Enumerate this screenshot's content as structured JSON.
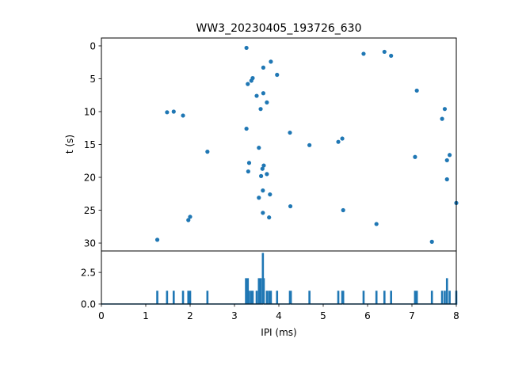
{
  "chart_data": {
    "type": "scatter",
    "title": "WW3_20230405_193726_630",
    "xlabel": "IPI (ms)",
    "top_panel": {
      "ylabel": "t (s)",
      "xlim": [
        0,
        8
      ],
      "ylim": [
        31.2,
        -1.2
      ],
      "y_inverted": true,
      "yticks": [
        0,
        5,
        10,
        15,
        20,
        25,
        30
      ],
      "color": "#1f77b4",
      "points": [
        {
          "x": 3.27,
          "y": 0.3
        },
        {
          "x": 5.91,
          "y": 1.2
        },
        {
          "x": 6.38,
          "y": 0.9
        },
        {
          "x": 6.53,
          "y": 1.5
        },
        {
          "x": 3.82,
          "y": 2.4
        },
        {
          "x": 3.65,
          "y": 3.3
        },
        {
          "x": 3.96,
          "y": 4.4
        },
        {
          "x": 3.41,
          "y": 4.9
        },
        {
          "x": 3.38,
          "y": 5.3
        },
        {
          "x": 3.3,
          "y": 5.8
        },
        {
          "x": 3.65,
          "y": 7.2
        },
        {
          "x": 3.5,
          "y": 7.6
        },
        {
          "x": 7.11,
          "y": 6.8
        },
        {
          "x": 3.73,
          "y": 8.6
        },
        {
          "x": 3.59,
          "y": 9.6
        },
        {
          "x": 7.74,
          "y": 9.6
        },
        {
          "x": 1.48,
          "y": 10.1
        },
        {
          "x": 1.63,
          "y": 10.0
        },
        {
          "x": 1.84,
          "y": 10.6
        },
        {
          "x": 7.68,
          "y": 11.1
        },
        {
          "x": 3.27,
          "y": 12.6
        },
        {
          "x": 4.25,
          "y": 13.2
        },
        {
          "x": 5.43,
          "y": 14.1
        },
        {
          "x": 5.34,
          "y": 14.6
        },
        {
          "x": 4.69,
          "y": 15.1
        },
        {
          "x": 3.55,
          "y": 15.5
        },
        {
          "x": 2.39,
          "y": 16.1
        },
        {
          "x": 7.85,
          "y": 16.6
        },
        {
          "x": 7.07,
          "y": 16.9
        },
        {
          "x": 7.79,
          "y": 17.4
        },
        {
          "x": 3.33,
          "y": 17.8
        },
        {
          "x": 3.66,
          "y": 18.2
        },
        {
          "x": 3.63,
          "y": 18.7
        },
        {
          "x": 3.31,
          "y": 19.1
        },
        {
          "x": 3.73,
          "y": 19.5
        },
        {
          "x": 3.6,
          "y": 19.8
        },
        {
          "x": 7.79,
          "y": 20.3
        },
        {
          "x": 3.64,
          "y": 22.0
        },
        {
          "x": 3.8,
          "y": 22.6
        },
        {
          "x": 3.55,
          "y": 23.1
        },
        {
          "x": 8.0,
          "y": 23.9
        },
        {
          "x": 4.26,
          "y": 24.4
        },
        {
          "x": 5.45,
          "y": 25.0
        },
        {
          "x": 3.64,
          "y": 25.4
        },
        {
          "x": 3.78,
          "y": 26.1
        },
        {
          "x": 2.0,
          "y": 26.0
        },
        {
          "x": 1.96,
          "y": 26.5
        },
        {
          "x": 6.2,
          "y": 27.1
        },
        {
          "x": 1.26,
          "y": 29.5
        },
        {
          "x": 7.45,
          "y": 29.8
        }
      ]
    },
    "bottom_panel": {
      "type": "line",
      "xlim": [
        0,
        8
      ],
      "ylim": [
        0,
        4.2
      ],
      "xticks": [
        0,
        1,
        2,
        3,
        4,
        5,
        6,
        7,
        8
      ],
      "yticks": [
        0.0,
        2.5
      ],
      "ytick_labels": [
        "0.0",
        "2.5"
      ],
      "color": "#1f77b4",
      "bin_width": 0.02,
      "bins": [
        {
          "x": 1.26,
          "y": 1
        },
        {
          "x": 1.48,
          "y": 1
        },
        {
          "x": 1.63,
          "y": 1
        },
        {
          "x": 1.84,
          "y": 1
        },
        {
          "x": 1.96,
          "y": 1
        },
        {
          "x": 2.0,
          "y": 1
        },
        {
          "x": 2.39,
          "y": 1
        },
        {
          "x": 3.26,
          "y": 2
        },
        {
          "x": 3.3,
          "y": 2
        },
        {
          "x": 3.33,
          "y": 1
        },
        {
          "x": 3.38,
          "y": 1
        },
        {
          "x": 3.41,
          "y": 1
        },
        {
          "x": 3.5,
          "y": 1
        },
        {
          "x": 3.55,
          "y": 2
        },
        {
          "x": 3.59,
          "y": 2
        },
        {
          "x": 3.64,
          "y": 4
        },
        {
          "x": 3.66,
          "y": 2
        },
        {
          "x": 3.73,
          "y": 1
        },
        {
          "x": 3.78,
          "y": 1
        },
        {
          "x": 3.82,
          "y": 1
        },
        {
          "x": 3.96,
          "y": 1
        },
        {
          "x": 4.25,
          "y": 1
        },
        {
          "x": 4.27,
          "y": 1
        },
        {
          "x": 4.69,
          "y": 1
        },
        {
          "x": 5.34,
          "y": 1
        },
        {
          "x": 5.43,
          "y": 1
        },
        {
          "x": 5.45,
          "y": 1
        },
        {
          "x": 5.91,
          "y": 1
        },
        {
          "x": 6.2,
          "y": 1
        },
        {
          "x": 6.38,
          "y": 1
        },
        {
          "x": 6.53,
          "y": 1
        },
        {
          "x": 7.07,
          "y": 1
        },
        {
          "x": 7.11,
          "y": 1
        },
        {
          "x": 7.45,
          "y": 1
        },
        {
          "x": 7.68,
          "y": 1
        },
        {
          "x": 7.74,
          "y": 1
        },
        {
          "x": 7.79,
          "y": 2
        },
        {
          "x": 7.85,
          "y": 1
        },
        {
          "x": 8.0,
          "y": 1
        }
      ]
    }
  }
}
